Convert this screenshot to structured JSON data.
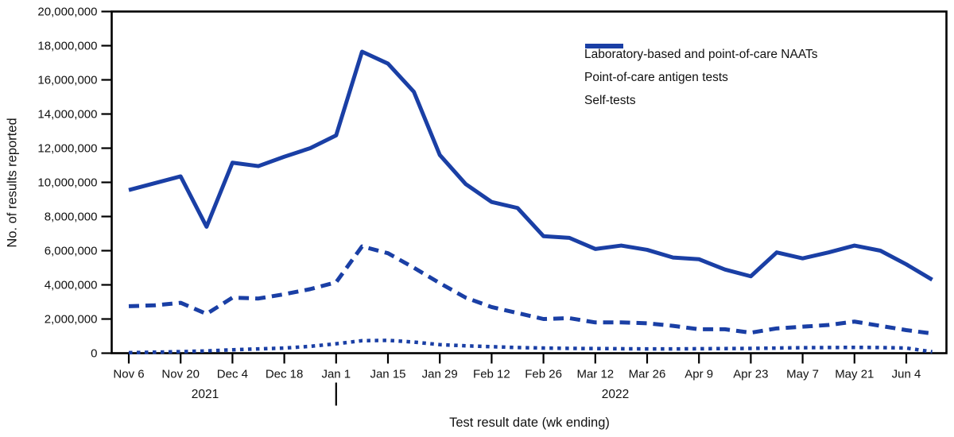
{
  "chart_data": {
    "type": "line",
    "title": "",
    "xlabel": "Test result date (wk ending)",
    "ylabel": "No. of results reported",
    "ylim": [
      0,
      20000000
    ],
    "yticks": [
      0,
      2000000,
      4000000,
      6000000,
      8000000,
      10000000,
      12000000,
      14000000,
      16000000,
      18000000,
      20000000
    ],
    "grid": false,
    "legend_position": "top-right-inside",
    "line_color": "#1a3fa5",
    "era_labels": [
      "2021",
      "2022"
    ],
    "x": [
      "Nov 6",
      "Nov 13",
      "Nov 20",
      "Nov 27",
      "Dec 4",
      "Dec 11",
      "Dec 18",
      "Dec 25",
      "Jan 1",
      "Jan 8",
      "Jan 15",
      "Jan 22",
      "Jan 29",
      "Feb 5",
      "Feb 12",
      "Feb 19",
      "Feb 26",
      "Mar 5",
      "Mar 12",
      "Mar 19",
      "Mar 26",
      "Apr 2",
      "Apr 9",
      "Apr 16",
      "Apr 23",
      "Apr 30",
      "May 7",
      "May 14",
      "May 21",
      "May 28",
      "Jun 4",
      "Jun 11"
    ],
    "x_tick_labels": [
      "Nov 6",
      "Nov 20",
      "Dec 4",
      "Dec 18",
      "Jan 1",
      "Jan 15",
      "Jan 29",
      "Feb 12",
      "Feb 26",
      "Mar 12",
      "Mar 26",
      "Apr 9",
      "Apr 23",
      "May 7",
      "May 21",
      "Jun 4"
    ],
    "series": [
      {
        "id": "naats",
        "name": "Laboratory-based and point-of-care NAATs",
        "style": "solid",
        "values": [
          9550000,
          9950000,
          10350000,
          7400000,
          11150000,
          10950000,
          11500000,
          12000000,
          12750000,
          17650000,
          16950000,
          15300000,
          11600000,
          9900000,
          8850000,
          8500000,
          6850000,
          6750000,
          6100000,
          6300000,
          6050000,
          5600000,
          5500000,
          4900000,
          4500000,
          5900000,
          5550000,
          5900000,
          6300000,
          6000000,
          5200000,
          4300000
        ]
      },
      {
        "id": "antigen",
        "name": "Point-of-care antigen tests",
        "style": "dashed",
        "values": [
          2750000,
          2800000,
          2950000,
          2300000,
          3250000,
          3200000,
          3450000,
          3750000,
          4150000,
          6250000,
          5850000,
          5000000,
          4100000,
          3250000,
          2700000,
          2350000,
          2000000,
          2050000,
          1800000,
          1800000,
          1750000,
          1600000,
          1400000,
          1400000,
          1200000,
          1450000,
          1550000,
          1650000,
          1850000,
          1600000,
          1350000,
          1150000
        ]
      },
      {
        "id": "selftests",
        "name": "Self-tests",
        "style": "dotted",
        "values": [
          30000,
          60000,
          90000,
          130000,
          200000,
          250000,
          300000,
          400000,
          550000,
          730000,
          750000,
          650000,
          500000,
          430000,
          380000,
          330000,
          300000,
          280000,
          270000,
          260000,
          250000,
          250000,
          260000,
          270000,
          280000,
          300000,
          320000,
          330000,
          340000,
          330000,
          300000,
          80000
        ]
      }
    ]
  }
}
